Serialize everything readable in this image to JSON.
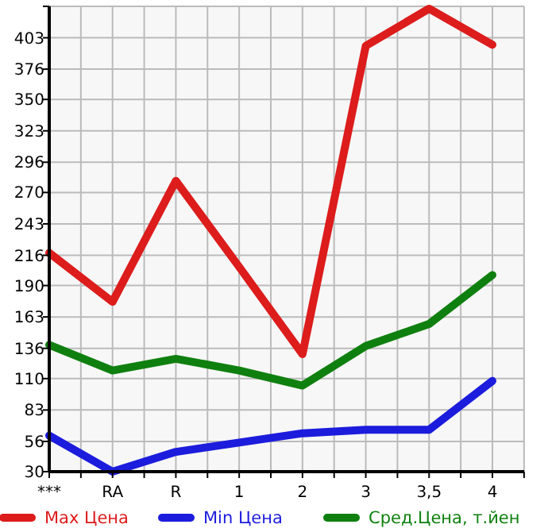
{
  "chart_data": {
    "type": "line",
    "categories": [
      "***",
      "RA",
      "R",
      "1",
      "2",
      "3",
      "3,5",
      "4"
    ],
    "series": [
      {
        "name": "Max Цена",
        "color": "#dd1c1c",
        "values": [
          218,
          176,
          280,
          206,
          131,
          396,
          428,
          397
        ]
      },
      {
        "name": "Min Цена",
        "color": "#1c1cdd",
        "values": [
          61,
          30,
          47,
          55,
          63,
          66,
          66,
          108
        ]
      },
      {
        "name": "Сред.Цена, т.йен",
        "color": "#0f800f",
        "values": [
          139,
          117,
          127,
          117,
          104,
          138,
          157,
          199
        ]
      }
    ],
    "ylim": [
      30,
      430
    ],
    "yticks": [
      30,
      56,
      83,
      110,
      136,
      163,
      190,
      216,
      243,
      270,
      296,
      323,
      350,
      376,
      403,
      {
        "value": 430,
        "label": null
      }
    ],
    "grid": true,
    "legend": "bottom",
    "marker": "none",
    "line_style": "solid"
  }
}
